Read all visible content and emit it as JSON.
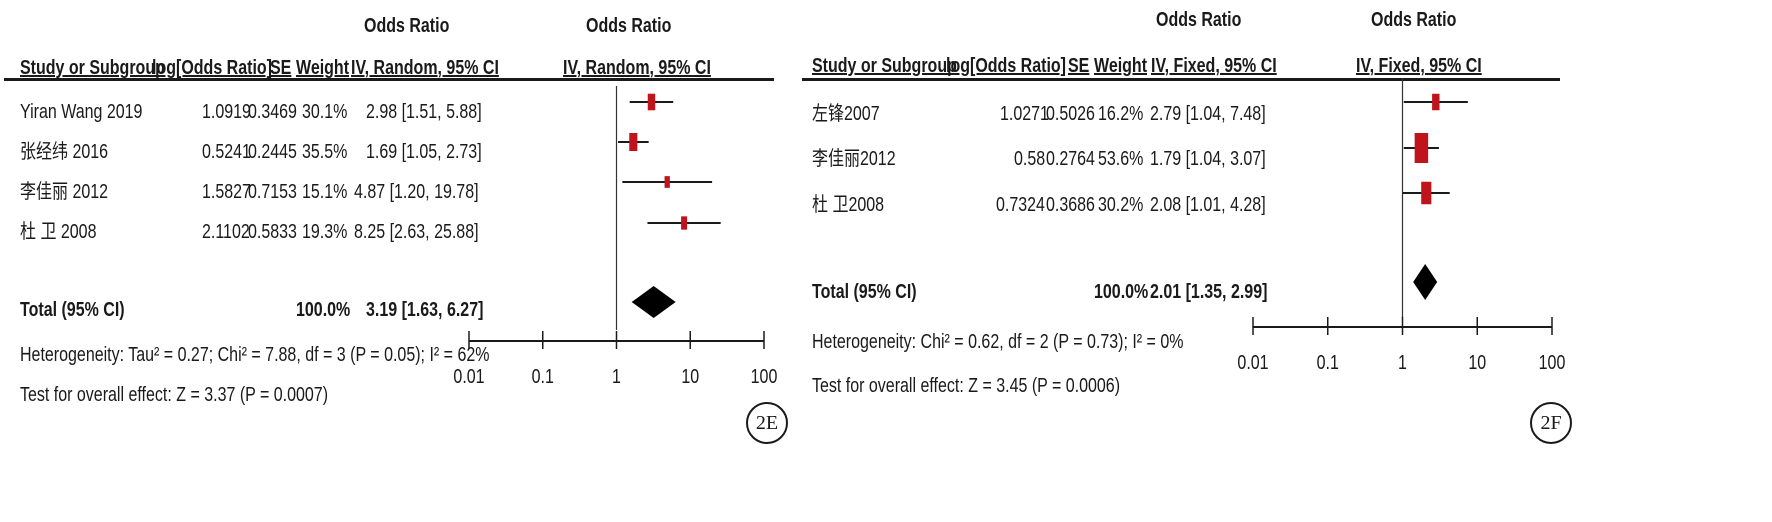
{
  "panels": [
    {
      "id": "E",
      "badge": "2E",
      "plot_header": "Odds Ratio",
      "table_header": "Odds Ratio",
      "columns": {
        "study": "Study or Subgroup",
        "logor": "log[Odds Ratio]",
        "se": "SE",
        "weight": "Weight",
        "ci": "IV, Random, 95% CI",
        "plot": "IV, Random, 95% CI"
      },
      "studies": [
        {
          "name": "Yiran Wang 2019",
          "logor": "1.0919",
          "se": "0.3469",
          "weight": "30.1%",
          "ci": "2.98 [1.51, 5.88]"
        },
        {
          "name": "张经纬 2016",
          "logor": "0.5241",
          "se": "0.2445",
          "weight": "35.5%",
          "ci": "1.69 [1.05, 2.73]"
        },
        {
          "name": "李佳丽 2012",
          "logor": "1.5827",
          "se": "0.7153",
          "weight": "15.1%",
          "ci": "4.87 [1.20, 19.78]"
        },
        {
          "name": "杜 卫 2008",
          "logor": "2.1102",
          "se": "0.5833",
          "weight": "19.3%",
          "ci": "8.25 [2.63, 25.88]"
        }
      ],
      "total": {
        "label": "Total (95% CI)",
        "weight": "100.0%",
        "ci": "3.19 [1.63, 6.27]"
      },
      "heterogeneity": "Heterogeneity: Tau² = 0.27; Chi² = 7.88, df = 3 (P = 0.05); I² = 62%",
      "overall_effect": "Test for overall effect: Z = 3.37 (P = 0.0007)",
      "axis_ticks": [
        "0.01",
        "0.1",
        "1",
        "10",
        "100"
      ]
    },
    {
      "id": "F",
      "badge": "2F",
      "plot_header": "Odds Ratio",
      "table_header": "Odds Ratio",
      "columns": {
        "study": "Study or Subgroup",
        "logor": "log[Odds Ratio]",
        "se": "SE",
        "weight": "Weight",
        "ci": "IV, Fixed, 95% CI",
        "plot": "IV, Fixed, 95% CI"
      },
      "studies": [
        {
          "name": "左锋2007",
          "logor": "1.0271",
          "se": "0.5026",
          "weight": "16.2%",
          "ci": "2.79 [1.04, 7.48]"
        },
        {
          "name": "李佳丽2012",
          "logor": "0.58",
          "se": "0.2764",
          "weight": "53.6%",
          "ci": "1.79 [1.04, 3.07]"
        },
        {
          "name": "杜 卫2008",
          "logor": "0.7324",
          "se": "0.3686",
          "weight": "30.2%",
          "ci": "2.08 [1.01, 4.28]"
        }
      ],
      "total": {
        "label": "Total (95% CI)",
        "weight": "100.0%",
        "ci": "2.01 [1.35, 2.99]"
      },
      "heterogeneity": "Heterogeneity: Chi² = 0.62, df = 2 (P = 0.73); I² = 0%",
      "overall_effect": "Test for overall effect: Z = 3.45 (P = 0.0006)",
      "axis_ticks": [
        "0.01",
        "0.1",
        "1",
        "10",
        "100"
      ]
    }
  ],
  "chart_data": [
    {
      "type": "forest",
      "scale": "log",
      "xlim": [
        0.01,
        100
      ],
      "reference_line": 1,
      "marker_color": "#c0141c",
      "studies": [
        {
          "name": "Yiran Wang 2019",
          "or": 2.98,
          "lower": 1.51,
          "upper": 5.88,
          "weight": 30.1
        },
        {
          "name": "张经纬 2016",
          "or": 1.69,
          "lower": 1.05,
          "upper": 2.73,
          "weight": 35.5
        },
        {
          "name": "李佳丽 2012",
          "or": 4.87,
          "lower": 1.2,
          "upper": 19.78,
          "weight": 15.1
        },
        {
          "name": "杜 卫 2008",
          "or": 8.25,
          "lower": 2.63,
          "upper": 25.88,
          "weight": 19.3
        }
      ],
      "total": {
        "or": 3.19,
        "lower": 1.63,
        "upper": 6.27
      }
    },
    {
      "type": "forest",
      "scale": "log",
      "xlim": [
        0.01,
        100
      ],
      "reference_line": 1,
      "marker_color": "#c0141c",
      "studies": [
        {
          "name": "左锋2007",
          "or": 2.79,
          "lower": 1.04,
          "upper": 7.48,
          "weight": 16.2
        },
        {
          "name": "李佳丽2012",
          "or": 1.79,
          "lower": 1.04,
          "upper": 3.07,
          "weight": 53.6
        },
        {
          "name": "杜 卫2008",
          "or": 2.08,
          "lower": 1.01,
          "upper": 4.28,
          "weight": 30.2
        }
      ],
      "total": {
        "or": 2.01,
        "lower": 1.35,
        "upper": 2.99
      }
    }
  ]
}
